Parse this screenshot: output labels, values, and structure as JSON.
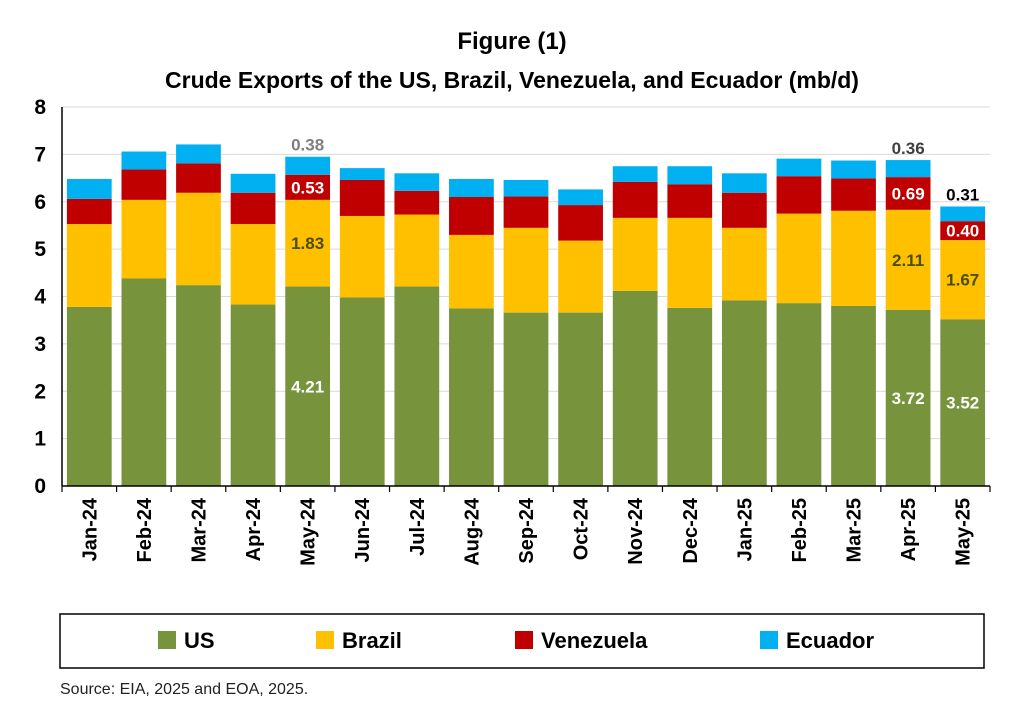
{
  "chart_data": {
    "type": "bar",
    "stacked": true,
    "title": "Figure (1)",
    "subtitle": "Crude Exports of the US, Brazil, Venezuela, and Ecuador (mb/d)",
    "xlabel": "",
    "ylabel": "",
    "ylim": [
      0,
      8
    ],
    "yticks": [
      0,
      1,
      2,
      3,
      4,
      5,
      6,
      7,
      8
    ],
    "grid": true,
    "legend_position": "bottom",
    "categories": [
      "Jan-24",
      "Feb-24",
      "Mar-24",
      "Apr-24",
      "May-24",
      "Jun-24",
      "Jul-24",
      "Aug-24",
      "Sep-24",
      "Oct-24",
      "Nov-24",
      "Dec-24",
      "Jan-25",
      "Feb-25",
      "Mar-25",
      "Apr-25",
      "May-25"
    ],
    "series": [
      {
        "name": "US",
        "color": "#77933c",
        "values": [
          3.78,
          4.38,
          4.24,
          3.83,
          4.21,
          3.98,
          4.21,
          3.75,
          3.66,
          3.66,
          4.12,
          3.76,
          3.92,
          3.86,
          3.8,
          3.72,
          3.52
        ]
      },
      {
        "name": "Brazil",
        "color": "#ffc000",
        "values": [
          1.75,
          1.66,
          1.95,
          1.7,
          1.83,
          1.72,
          1.52,
          1.55,
          1.79,
          1.52,
          1.54,
          1.9,
          1.53,
          1.89,
          2.01,
          2.11,
          1.67
        ]
      },
      {
        "name": "Venezuela",
        "color": "#c00000",
        "values": [
          0.53,
          0.64,
          0.62,
          0.66,
          0.53,
          0.76,
          0.5,
          0.8,
          0.66,
          0.75,
          0.76,
          0.71,
          0.74,
          0.79,
          0.68,
          0.69,
          0.4
        ]
      },
      {
        "name": "Ecuador",
        "color": "#00b0f0",
        "values": [
          0.42,
          0.38,
          0.4,
          0.4,
          0.38,
          0.25,
          0.37,
          0.38,
          0.35,
          0.33,
          0.33,
          0.38,
          0.41,
          0.37,
          0.38,
          0.36,
          0.31
        ]
      }
    ],
    "data_labels": [
      {
        "category": "May-24",
        "series": "US",
        "text": "4.21",
        "color": "#ffffff"
      },
      {
        "category": "May-24",
        "series": "Brazil",
        "text": "1.83",
        "color": "#4d4d00"
      },
      {
        "category": "May-24",
        "series": "Venezuela",
        "text": "0.53",
        "color": "#ffffff"
      },
      {
        "category": "May-24",
        "series": "Ecuador",
        "text": "0.38",
        "color": "#7f7f7f",
        "above": true
      },
      {
        "category": "Apr-25",
        "series": "US",
        "text": "3.72",
        "color": "#ffffff"
      },
      {
        "category": "Apr-25",
        "series": "Brazil",
        "text": "2.11",
        "color": "#4d4d00"
      },
      {
        "category": "Apr-25",
        "series": "Venezuela",
        "text": "0.69",
        "color": "#ffffff"
      },
      {
        "category": "Apr-25",
        "series": "Ecuador",
        "text": "0.36",
        "color": "#404040",
        "above": true
      },
      {
        "category": "May-25",
        "series": "US",
        "text": "3.52",
        "color": "#ffffff"
      },
      {
        "category": "May-25",
        "series": "Brazil",
        "text": "1.67",
        "color": "#4d4d00"
      },
      {
        "category": "May-25",
        "series": "Venezuela",
        "text": "0.40",
        "color": "#ffffff"
      },
      {
        "category": "May-25",
        "series": "Ecuador",
        "text": "0.31",
        "color": "#000000",
        "above": true
      }
    ]
  },
  "source": "Source: EIA, 2025 and EOA, 2025."
}
